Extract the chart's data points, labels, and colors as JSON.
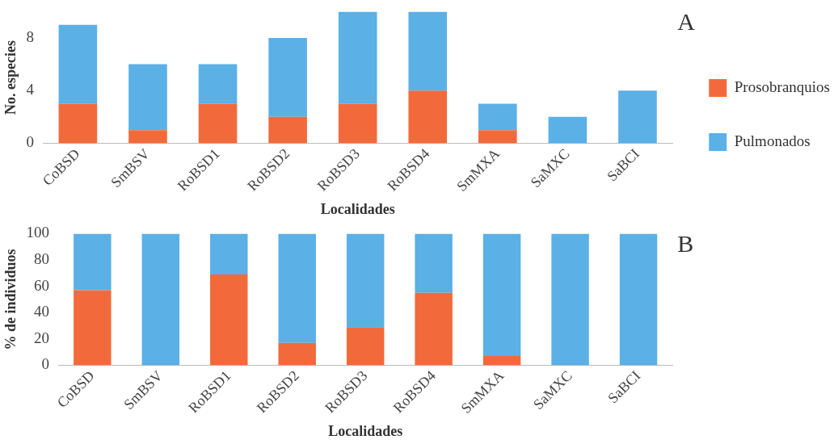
{
  "chart_data": [
    {
      "type": "bar",
      "stacked": true,
      "xlabel": "Localidades",
      "ylabel": "No. especies",
      "categories": [
        "CoBSD",
        "SmBSV",
        "RoBSD1",
        "RoBSD2",
        "RoBSD3",
        "RoBSD4",
        "SmMXA",
        "SaMXC",
        "SaBCI"
      ],
      "ylim": [
        0,
        10
      ],
      "yticks": [
        0,
        4,
        8
      ],
      "grid": false,
      "legend": "right",
      "annotations": [
        "A"
      ],
      "series": [
        {
          "name": "Prosobranquios",
          "color": "#f26a3b",
          "values": [
            3,
            1,
            3,
            2,
            3,
            4,
            1,
            0,
            0
          ]
        },
        {
          "name": "Pulmonados",
          "color": "#5bb0e6",
          "values": [
            6,
            5,
            3,
            6,
            7,
            6,
            2,
            2,
            4
          ]
        }
      ]
    },
    {
      "type": "bar",
      "stacked": true,
      "xlabel": "Localidades",
      "ylabel": "% de individuos",
      "categories": [
        "CoBSD",
        "SmBSV",
        "RoBSD1",
        "RoBSD2",
        "RoBSD3",
        "RoBSD4",
        "SmMXA",
        "SaMXC",
        "SaBCI"
      ],
      "ylim": [
        0,
        100
      ],
      "yticks": [
        0,
        20,
        40,
        60,
        80,
        100
      ],
      "grid": false,
      "annotations": [
        "B"
      ],
      "series": [
        {
          "color": "#f26a3b",
          "values": [
            57,
            0,
            69,
            17,
            29,
            55,
            7,
            0,
            0
          ]
        },
        {
          "color": "#5bb0e6",
          "values": [
            43,
            100,
            31,
            83,
            71,
            45,
            93,
            100,
            100
          ]
        }
      ]
    }
  ]
}
